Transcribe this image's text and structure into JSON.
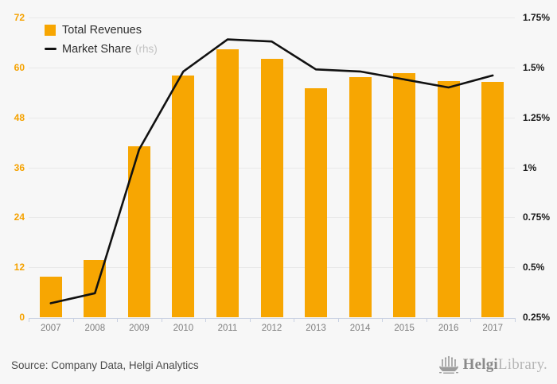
{
  "legend": {
    "items": [
      {
        "label": "Total Revenues",
        "marker": "square"
      },
      {
        "label": "Market Share",
        "suffix": "(rhs)",
        "marker": "line"
      }
    ]
  },
  "chart_data": {
    "type": "combo-bar-line",
    "categories": [
      "2007",
      "2008",
      "2009",
      "2010",
      "2011",
      "2012",
      "2013",
      "2014",
      "2015",
      "2016",
      "2017"
    ],
    "series": [
      {
        "name": "Total Revenues",
        "type": "bar",
        "axis": "left",
        "values": [
          9.7,
          13.7,
          41.1,
          58.0,
          64.4,
          62.0,
          55.0,
          57.6,
          58.7,
          56.7,
          56.6
        ]
      },
      {
        "name": "Market Share (rhs)",
        "type": "line",
        "axis": "right",
        "values": [
          0.32,
          0.37,
          1.09,
          1.48,
          1.64,
          1.63,
          1.49,
          1.48,
          1.44,
          1.4,
          1.46
        ]
      }
    ],
    "left_axis": {
      "ticks": [
        "0",
        "12",
        "24",
        "36",
        "48",
        "60",
        "72"
      ],
      "min": 0,
      "max": 72
    },
    "right_axis": {
      "ticks": [
        "0.25%",
        "0.5%",
        "0.75%",
        "1%",
        "1.25%",
        "1.5%",
        "1.75%"
      ],
      "min": 0.25,
      "max": 1.75
    },
    "grid": true,
    "legend_position": "top-left",
    "colors": {
      "bar": "#F7A602",
      "line": "#111111",
      "left_axis_text": "#F5A200",
      "right_axis_text": "#1a1a1a",
      "grid": "#e9e9e9",
      "axis_line": "#c9d1e2",
      "x_label_text": "#7f7f7f"
    }
  },
  "footer": {
    "source": "Source: Company Data, Helgi Analytics",
    "logo_primary": "Helgi",
    "logo_secondary": "Library."
  }
}
